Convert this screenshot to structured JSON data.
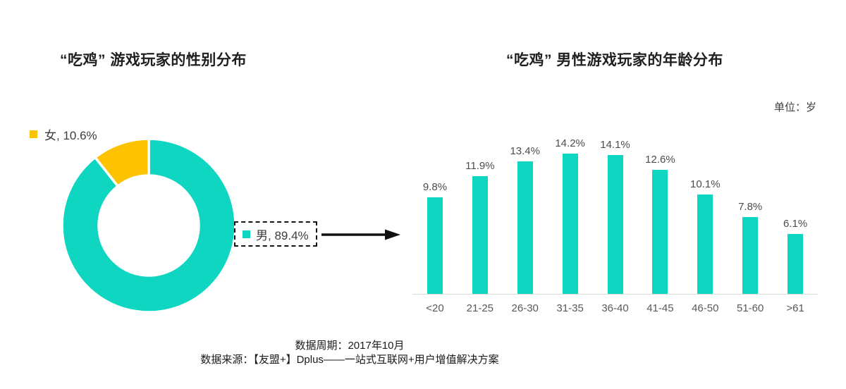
{
  "chart_data": [
    {
      "type": "pie",
      "title": "“吃鸡” 游戏玩家的性别分布",
      "donut": true,
      "start_angle_deg": 0,
      "segments": [
        {
          "label": "男",
          "value": 89.4,
          "color": "#0ed6c1"
        },
        {
          "label": "女",
          "value": 10.6,
          "color": "#fdc300"
        }
      ],
      "female_label": "女, 10.6%",
      "male_label": "男, 89.4%",
      "legend_position": "top-left",
      "separator_color": "#ffffff"
    },
    {
      "type": "bar",
      "title": "“吃鸡” 男性游戏玩家的年龄分布",
      "unit_label": "单位：岁",
      "categories": [
        "<20",
        "21-25",
        "26-30",
        "31-35",
        "36-40",
        "41-45",
        "46-50",
        "51-60",
        ">61"
      ],
      "values": [
        9.8,
        11.9,
        13.4,
        14.2,
        14.1,
        12.6,
        10.1,
        7.8,
        6.1
      ],
      "value_labels": [
        "9.8%",
        "11.9%",
        "13.4%",
        "14.2%",
        "14.1%",
        "12.6%",
        "10.1%",
        "7.8%",
        "6.1%"
      ],
      "bar_color": "#0ed6c1",
      "axis_line_color": "#d9d9d9",
      "y_axis_visible": false,
      "grid": false,
      "ylim": [
        0,
        15
      ]
    }
  ],
  "footer": {
    "line1": "数据周期：2017年10月",
    "line2": "数据来源：【友盟+】Dplus——一站式互联网+用户增值解决方案"
  }
}
